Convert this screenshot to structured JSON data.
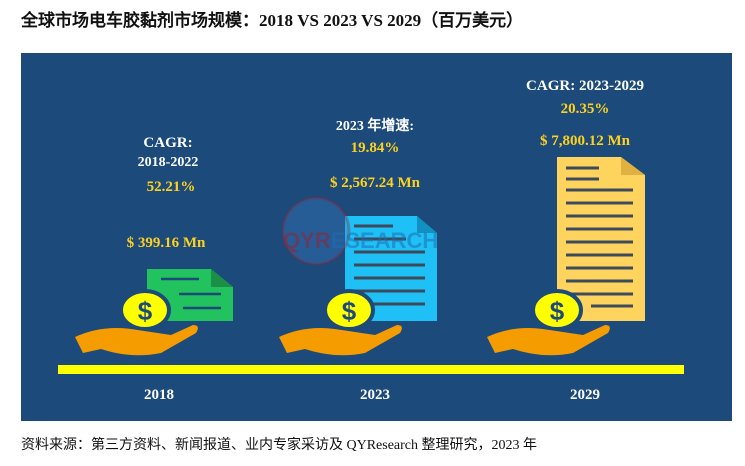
{
  "title": "全球市场电车胶黏剂市场规模：2018 VS 2023 VS 2029（百万美元）",
  "groups": [
    {
      "year": "2018",
      "label_line1": "CAGR:",
      "label_line2": "2018-2022",
      "growth": "52.21%",
      "value": "$ 399.16 Mn",
      "doc_color": "#22c35e"
    },
    {
      "year": "2023",
      "label_line1": "2023 年增速:",
      "growth": "19.84%",
      "value": "$ 2,567.24 Mn",
      "doc_color": "#1ec0f5"
    },
    {
      "year": "2029",
      "label_line1": "CAGR: 2023-2029",
      "growth": "20.35%",
      "value": "$ 7,800.12 Mn",
      "doc_color": "#ffd45e"
    }
  ],
  "colors": {
    "panel": "#1b4a7b",
    "timeline": "#ffff00",
    "coin": "#ffff00",
    "hand": "#f59c00",
    "value_text": "#ffd21f"
  },
  "watermark": {
    "main": "QYR",
    "rest": "ESEARCH"
  },
  "footer": "资料来源：第三方资料、新闻报道、业内专家采访及 QYResearch 整理研究，2023 年"
}
